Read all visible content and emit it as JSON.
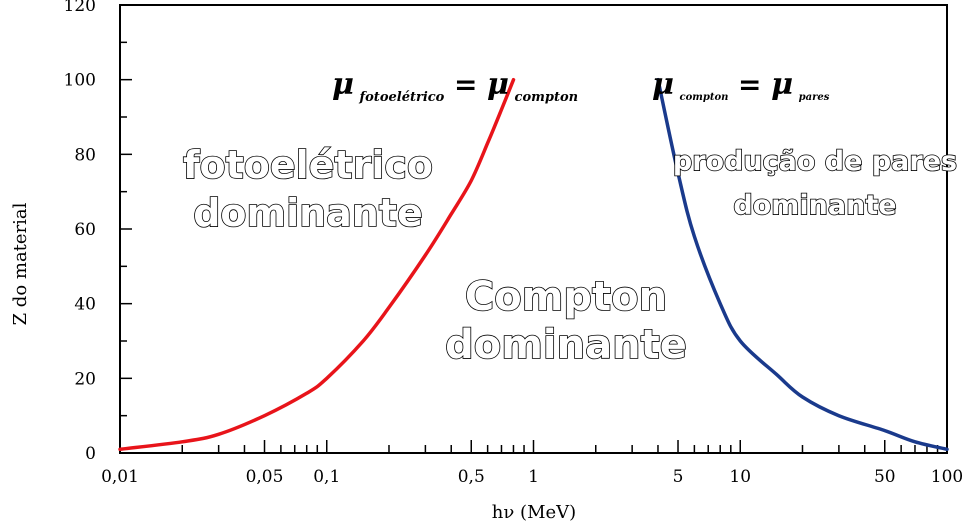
{
  "chart_data": {
    "type": "line",
    "x_scale": "log",
    "xlim": [
      0.01,
      100
    ],
    "ylim": [
      0,
      120
    ],
    "xlabel": "hν (MeV)",
    "ylabel": "Z do material",
    "x_tick_values": [
      0.01,
      0.05,
      0.1,
      0.5,
      1,
      5,
      10,
      50,
      100
    ],
    "x_tick_labels": [
      "0,01",
      "0,05",
      "0,1",
      "0,5",
      "1",
      "5",
      "10",
      "50",
      "100"
    ],
    "y_tick_values": [
      0,
      20,
      40,
      60,
      80,
      100,
      120
    ],
    "y_tick_labels": [
      "0",
      "20",
      "40",
      "60",
      "80",
      "100",
      "120"
    ],
    "series": [
      {
        "color": "#e8141a",
        "x": [
          0.01,
          0.02,
          0.03,
          0.05,
          0.08,
          0.1,
          0.15,
          0.2,
          0.3,
          0.4,
          0.5,
          0.6,
          0.7,
          0.8
        ],
        "y": [
          1,
          3,
          5,
          10,
          16,
          20,
          30,
          39,
          53,
          64,
          73,
          83,
          92,
          100
        ]
      },
      {
        "color": "#1a3a8c",
        "x": [
          4,
          5,
          6,
          8,
          10,
          15,
          20,
          30,
          50,
          70,
          100
        ],
        "y": [
          100,
          75,
          58,
          40,
          30,
          21,
          15,
          10,
          6,
          3,
          1
        ]
      }
    ],
    "annotations": {
      "boundary_left": {
        "mu": "μ",
        "sub1": "fotoelétrico",
        "eq": "=",
        "sub2": "compton"
      },
      "boundary_right": {
        "mu": "μ",
        "sub1": "compton",
        "eq": "=",
        "sub2": "pares"
      },
      "region_photo": [
        "fotoelétrico",
        "dominante"
      ],
      "region_compton": [
        "Compton",
        "dominante"
      ],
      "region_pairs": [
        "produção de pares",
        "dominante"
      ]
    }
  }
}
